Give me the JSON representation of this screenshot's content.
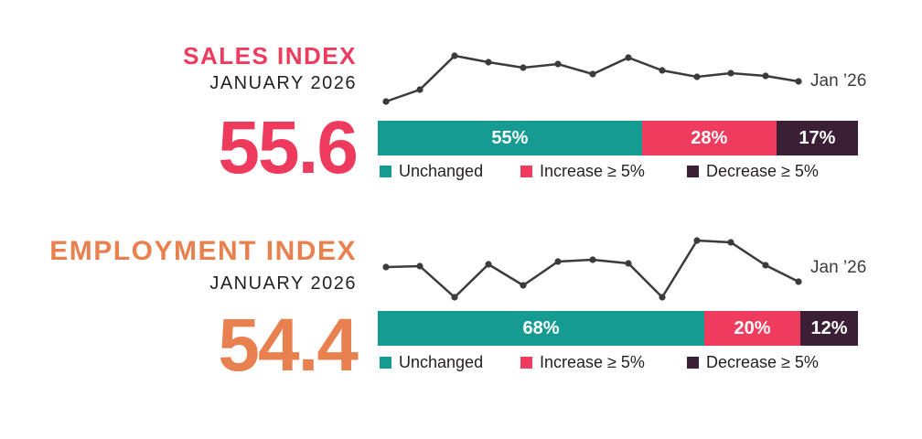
{
  "page": {
    "background": "#FFFFFF"
  },
  "colors": {
    "teal": "#169B93",
    "pink": "#EF3B5D",
    "plum": "#3B1F35",
    "line": "#3B3B3B",
    "text": "#231F20",
    "sales_accent": "#EE3B5D",
    "employment_accent": "#E8814F"
  },
  "sections": [
    {
      "id": "sales",
      "title": "SALES INDEX",
      "subtitle": "JANUARY 2026",
      "value": "55.6",
      "accent_color": "#EE3B5D",
      "trend": {
        "end_label": "Jan ’26",
        "points": [
          [
            9,
            66
          ],
          [
            46,
            53
          ],
          [
            84,
            16
          ],
          [
            121,
            23
          ],
          [
            159,
            29
          ],
          [
            197,
            25
          ],
          [
            235,
            36
          ],
          [
            274,
            18
          ],
          [
            311,
            32
          ],
          [
            349,
            39
          ],
          [
            386,
            35
          ],
          [
            424,
            38
          ],
          [
            460,
            44
          ]
        ]
      },
      "bar": {
        "segments": [
          {
            "label": "55%",
            "value": 55,
            "color": "#169B93"
          },
          {
            "label": "28%",
            "value": 28,
            "color": "#EF3B5D"
          },
          {
            "label": "17%",
            "value": 17,
            "color": "#3B1F35"
          }
        ]
      },
      "legend": [
        {
          "label": "Unchanged",
          "color": "#169B93"
        },
        {
          "label": "Increase ≥ 5%",
          "color": "#EF3B5D"
        },
        {
          "label": "Decrease ≥ 5%",
          "color": "#3B1F35"
        }
      ]
    },
    {
      "id": "employment",
      "title": "EMPLOYMENT INDEX",
      "subtitle": "JANUARY 2026",
      "value": "54.4",
      "accent_color": "#E8814F",
      "trend": {
        "end_label": "Jan ’26",
        "points": [
          [
            9,
            40
          ],
          [
            46,
            39
          ],
          [
            84,
            73
          ],
          [
            121,
            37
          ],
          [
            159,
            60
          ],
          [
            197,
            34
          ],
          [
            235,
            32
          ],
          [
            274,
            36
          ],
          [
            311,
            73
          ],
          [
            349,
            11
          ],
          [
            386,
            13
          ],
          [
            424,
            38
          ],
          [
            460,
            56
          ]
        ]
      },
      "bar": {
        "segments": [
          {
            "label": "68%",
            "value": 68,
            "color": "#169B93"
          },
          {
            "label": "20%",
            "value": 20,
            "color": "#EF3B5D"
          },
          {
            "label": "12%",
            "value": 12,
            "color": "#3B1F35"
          }
        ]
      },
      "legend": [
        {
          "label": "Unchanged",
          "color": "#169B93"
        },
        {
          "label": "Increase ≥ 5%",
          "color": "#EF3B5D"
        },
        {
          "label": "Decrease ≥ 5%",
          "color": "#3B1F35"
        }
      ]
    }
  ],
  "chart_data": [
    {
      "type": "line",
      "title": "Sales Index trend (13 monthly points ending Jan ’26)",
      "x_end_label": "Jan ’26",
      "n_points": 13,
      "estimated_values": [
        53.0,
        54.5,
        59.0,
        58.1,
        57.4,
        57.9,
        56.6,
        58.7,
        57.0,
        56.2,
        56.7,
        56.3,
        55.6
      ],
      "current_value": 55.6,
      "axes_shown": false,
      "legend_position": "none"
    },
    {
      "type": "bar",
      "subtype": "stacked-horizontal",
      "title": "Sales Index distribution",
      "categories": [
        "Unchanged",
        "Increase ≥ 5%",
        "Decrease ≥ 5%"
      ],
      "values": [
        55,
        28,
        17
      ],
      "unit": "%",
      "legend_position": "below"
    },
    {
      "type": "line",
      "title": "Employment Index trend (13 monthly points ending Jan ’26)",
      "x_end_label": "Jan ’26",
      "n_points": 13,
      "estimated_values": [
        56.3,
        56.4,
        52.4,
        56.7,
        53.9,
        57.0,
        57.3,
        56.8,
        52.4,
        59.8,
        59.6,
        56.6,
        54.4
      ],
      "current_value": 54.4,
      "axes_shown": false,
      "legend_position": "none"
    },
    {
      "type": "bar",
      "subtype": "stacked-horizontal",
      "title": "Employment Index distribution",
      "categories": [
        "Unchanged",
        "Increase ≥ 5%",
        "Decrease ≥ 5%"
      ],
      "values": [
        68,
        20,
        12
      ],
      "unit": "%",
      "legend_position": "below"
    }
  ]
}
